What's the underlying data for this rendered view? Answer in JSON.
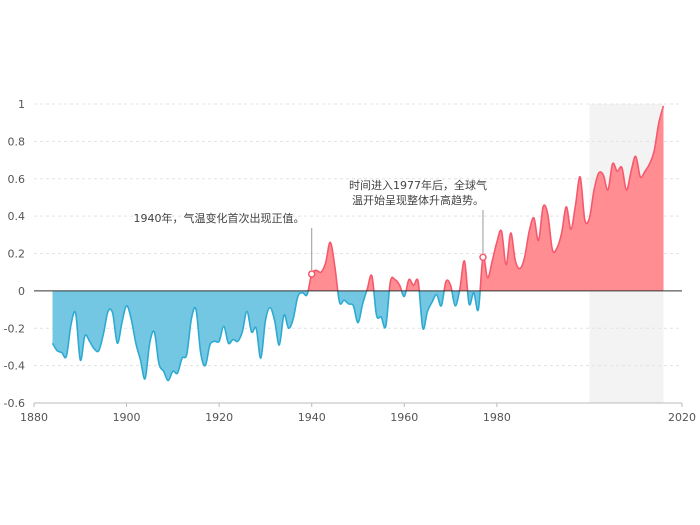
{
  "chart_data": {
    "type": "area",
    "title": "",
    "xlabel": "",
    "ylabel": "",
    "xlim": [
      1880,
      2020
    ],
    "ylim": [
      -0.6,
      1
    ],
    "x_ticks": [
      "1880",
      "1900",
      "1920",
      "1940",
      "1960",
      "1980",
      "2020"
    ],
    "y_ticks": [
      "1",
      "0.8",
      "0.6",
      "0.4",
      "0.2",
      "0",
      "-0.2",
      "-0.4",
      "-0.6"
    ],
    "grid": true,
    "legend": "none",
    "highlight_range": [
      2000,
      2016
    ],
    "colors": {
      "positive_fill": "#ff8d91",
      "positive_line": "#f5596e",
      "negative_fill": "#74c7e3",
      "negative_line": "#2eaad1",
      "highlight_band": "#f3f3f3",
      "zero_line": "#333333",
      "grid_line": "#e3e3e3"
    },
    "x": [
      1884,
      1885,
      1886,
      1887,
      1888,
      1889,
      1890,
      1891,
      1892,
      1893,
      1894,
      1895,
      1896,
      1897,
      1898,
      1899,
      1900,
      1901,
      1902,
      1903,
      1904,
      1905,
      1906,
      1907,
      1908,
      1909,
      1910,
      1911,
      1912,
      1913,
      1914,
      1915,
      1916,
      1917,
      1918,
      1919,
      1920,
      1921,
      1922,
      1923,
      1924,
      1925,
      1926,
      1927,
      1928,
      1929,
      1930,
      1931,
      1932,
      1933,
      1934,
      1935,
      1936,
      1937,
      1938,
      1939,
      1940,
      1941,
      1942,
      1943,
      1944,
      1945,
      1946,
      1947,
      1948,
      1949,
      1950,
      1951,
      1952,
      1953,
      1954,
      1955,
      1956,
      1957,
      1958,
      1959,
      1960,
      1961,
      1962,
      1963,
      1964,
      1965,
      1966,
      1967,
      1968,
      1969,
      1970,
      1971,
      1972,
      1973,
      1974,
      1975,
      1976,
      1977,
      1978,
      1979,
      1980,
      1981,
      1982,
      1983,
      1984,
      1985,
      1986,
      1987,
      1988,
      1989,
      1990,
      1991,
      1992,
      1993,
      1994,
      1995,
      1996,
      1997,
      1998,
      1999,
      2000,
      2001,
      2002,
      2003,
      2004,
      2005,
      2006,
      2007,
      2008,
      2009,
      2010,
      2011,
      2012,
      2013,
      2014,
      2015,
      2016
    ],
    "values": [
      -0.28,
      -0.32,
      -0.33,
      -0.35,
      -0.18,
      -0.12,
      -0.37,
      -0.24,
      -0.27,
      -0.31,
      -0.32,
      -0.23,
      -0.11,
      -0.12,
      -0.28,
      -0.17,
      -0.08,
      -0.15,
      -0.28,
      -0.37,
      -0.47,
      -0.28,
      -0.22,
      -0.39,
      -0.43,
      -0.48,
      -0.43,
      -0.44,
      -0.36,
      -0.34,
      -0.15,
      -0.1,
      -0.33,
      -0.4,
      -0.29,
      -0.27,
      -0.27,
      -0.19,
      -0.28,
      -0.26,
      -0.27,
      -0.22,
      -0.11,
      -0.22,
      -0.2,
      -0.36,
      -0.16,
      -0.09,
      -0.16,
      -0.29,
      -0.13,
      -0.2,
      -0.15,
      -0.03,
      -0.01,
      -0.02,
      0.09,
      0.11,
      0.1,
      0.15,
      0.26,
      0.13,
      -0.06,
      -0.05,
      -0.07,
      -0.08,
      -0.17,
      -0.07,
      0.01,
      0.08,
      -0.13,
      -0.14,
      -0.19,
      0.05,
      0.06,
      0.03,
      -0.03,
      0.06,
      0.03,
      0.05,
      -0.2,
      -0.11,
      -0.06,
      -0.02,
      -0.08,
      0.05,
      0.03,
      -0.08,
      0.01,
      0.16,
      -0.07,
      -0.01,
      -0.1,
      0.18,
      0.07,
      0.16,
      0.26,
      0.32,
      0.14,
      0.31,
      0.16,
      0.12,
      0.18,
      0.32,
      0.39,
      0.27,
      0.45,
      0.41,
      0.22,
      0.23,
      0.31,
      0.45,
      0.33,
      0.46,
      0.61,
      0.38,
      0.39,
      0.54,
      0.63,
      0.62,
      0.54,
      0.68,
      0.64,
      0.66,
      0.54,
      0.64,
      0.72,
      0.61,
      0.64,
      0.68,
      0.75,
      0.9,
      0.99
    ]
  },
  "annotations": [
    {
      "text_lines": [
        "1940年，气温变化首次出现正值。"
      ],
      "x": 1940,
      "y": 0.09
    },
    {
      "text_lines": [
        "时间进入1977年后，全球气",
        "温开始呈现整体升高趋势。"
      ],
      "x": 1977,
      "y": 0.18
    }
  ]
}
